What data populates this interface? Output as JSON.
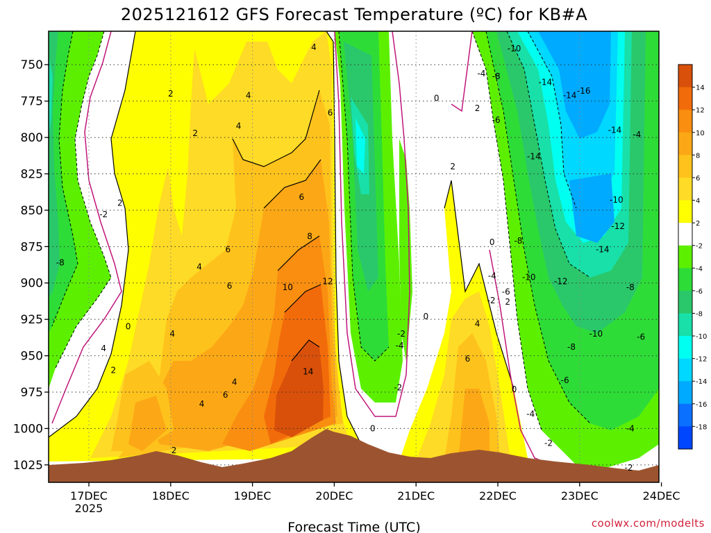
{
  "chart_data": {
    "type": "heatmap",
    "title": "2025121612 GFS Forecast Temperature (ºC) for KB#A",
    "xlabel": "Forecast Time (UTC)",
    "ylabel": "",
    "credit": "coolwx.com/modelts",
    "x_ticks": [
      "17DEC",
      "18DEC",
      "19DEC",
      "20DEC",
      "21DEC",
      "22DEC",
      "23DEC",
      "24DEC"
    ],
    "x_subtick": "2025",
    "y_ticks": [
      750,
      775,
      800,
      825,
      850,
      875,
      900,
      925,
      950,
      975,
      1000,
      1025
    ],
    "ylim": [
      1037,
      727
    ],
    "grid": true,
    "colorbar": {
      "labels": [
        "14",
        "12",
        "10",
        "8",
        "6",
        "4",
        "2",
        "-2",
        "-4",
        "-6",
        "-8",
        "-10",
        "-12",
        "-14",
        "-16",
        "-18"
      ],
      "colors": [
        "#d8500a",
        "#f26b0a",
        "#f98e10",
        "#fca816",
        "#fec21c",
        "#fedb26",
        "#fefe00",
        "#ffffff",
        "#5cf000",
        "#2edc38",
        "#2ac86a",
        "#18e0a8",
        "#00fff0",
        "#00d8ff",
        "#00aaff",
        "#0a70ff",
        "#0046ff"
      ]
    },
    "contour_labels": [
      {
        "v": "2",
        "t": 1.04,
        "p": 1015
      },
      {
        "v": "4",
        "t": 1.38,
        "p": 983
      },
      {
        "v": "4",
        "t": 0.18,
        "p": 945
      },
      {
        "v": "-8",
        "t": -0.35,
        "p": 886
      },
      {
        "v": "-2",
        "t": 0.18,
        "p": 853
      },
      {
        "v": "2",
        "t": 0.38,
        "p": 845
      },
      {
        "v": "0",
        "t": 0.48,
        "p": 930
      },
      {
        "v": "2",
        "t": 0.3,
        "p": 960
      },
      {
        "v": "2",
        "t": 1.0,
        "p": 770
      },
      {
        "v": "2",
        "t": 1.3,
        "p": 797
      },
      {
        "v": "4",
        "t": 1.95,
        "p": 771
      },
      {
        "v": "4",
        "t": 1.83,
        "p": 792
      },
      {
        "v": "4",
        "t": 1.35,
        "p": 889
      },
      {
        "v": "4",
        "t": 2.75,
        "p": 738
      },
      {
        "v": "6",
        "t": 2.6,
        "p": 841
      },
      {
        "v": "6",
        "t": 1.7,
        "p": 877
      },
      {
        "v": "6",
        "t": 1.72,
        "p": 902
      },
      {
        "v": "6",
        "t": 1.67,
        "p": 977
      },
      {
        "v": "4",
        "t": 1.78,
        "p": 968
      },
      {
        "v": "4",
        "t": 1.02,
        "p": 935
      },
      {
        "v": "6",
        "t": 2.95,
        "p": 783
      },
      {
        "v": "8",
        "t": 2.7,
        "p": 868
      },
      {
        "v": "10",
        "t": 2.43,
        "p": 903
      },
      {
        "v": "12",
        "t": 2.92,
        "p": 899
      },
      {
        "v": "14",
        "t": 2.68,
        "p": 961
      },
      {
        "v": "0",
        "t": 3.47,
        "p": 1000
      },
      {
        "v": "-2",
        "t": 3.78,
        "p": 972
      },
      {
        "v": "-2",
        "t": 3.82,
        "p": 935
      },
      {
        "v": "-4",
        "t": 3.8,
        "p": 943
      },
      {
        "v": "0",
        "t": 4.12,
        "p": 923
      },
      {
        "v": "0",
        "t": 4.25,
        "p": 773
      },
      {
        "v": "2",
        "t": 4.75,
        "p": 780
      },
      {
        "v": "2",
        "t": 4.45,
        "p": 820
      },
      {
        "v": "0",
        "t": 4.93,
        "p": 872
      },
      {
        "v": "-4",
        "t": 4.93,
        "p": 895
      },
      {
        "v": "-8",
        "t": 5.25,
        "p": 871
      },
      {
        "v": "-10",
        "t": 5.38,
        "p": 896
      },
      {
        "v": "-6",
        "t": 5.1,
        "p": 906
      },
      {
        "v": "-2",
        "t": 4.92,
        "p": 912
      },
      {
        "v": "2",
        "t": 5.12,
        "p": 913
      },
      {
        "v": "4",
        "t": 4.75,
        "p": 928
      },
      {
        "v": "6",
        "t": 4.63,
        "p": 952
      },
      {
        "v": "0",
        "t": 5.2,
        "p": 973
      },
      {
        "v": "-4",
        "t": 5.4,
        "p": 990
      },
      {
        "v": "-2",
        "t": 5.62,
        "p": 1010
      },
      {
        "v": "-6",
        "t": 5.82,
        "p": 967
      },
      {
        "v": "-8",
        "t": 5.9,
        "p": 944
      },
      {
        "v": "-10",
        "t": 6.2,
        "p": 935
      },
      {
        "v": "-12",
        "t": 5.77,
        "p": 899
      },
      {
        "v": "-14",
        "t": 6.28,
        "p": 877
      },
      {
        "v": "-12",
        "t": 6.47,
        "p": 861
      },
      {
        "v": "-10",
        "t": 6.45,
        "p": 843
      },
      {
        "v": "-14",
        "t": 5.44,
        "p": 813
      },
      {
        "v": "-14",
        "t": 6.43,
        "p": 795
      },
      {
        "v": "-4",
        "t": 6.7,
        "p": 798
      },
      {
        "v": "-8",
        "t": 6.62,
        "p": 903
      },
      {
        "v": "-6",
        "t": 6.75,
        "p": 937
      },
      {
        "v": "-4",
        "t": 6.62,
        "p": 1000
      },
      {
        "v": "-2",
        "t": 6.6,
        "p": 1027
      },
      {
        "v": "-14",
        "t": 5.58,
        "p": 762
      },
      {
        "v": "-14",
        "t": 5.88,
        "p": 771
      },
      {
        "v": "-16",
        "t": 6.05,
        "p": 768
      },
      {
        "v": "-10",
        "t": 5.2,
        "p": 739
      },
      {
        "v": "-8",
        "t": 4.98,
        "p": 758
      },
      {
        "v": "-4",
        "t": 4.8,
        "p": 756
      },
      {
        "v": "-6",
        "t": 4.98,
        "p": 788
      }
    ]
  }
}
